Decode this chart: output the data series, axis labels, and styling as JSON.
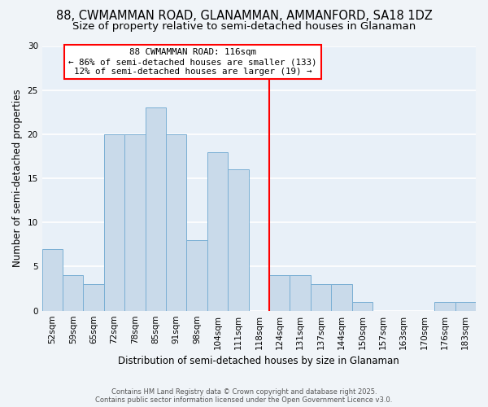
{
  "title": "88, CWMAMMAN ROAD, GLANAMMAN, AMMANFORD, SA18 1DZ",
  "subtitle": "Size of property relative to semi-detached houses in Glanaman",
  "xlabel": "Distribution of semi-detached houses by size in Glanaman",
  "ylabel": "Number of semi-detached properties",
  "categories": [
    "52sqm",
    "59sqm",
    "65sqm",
    "72sqm",
    "78sqm",
    "85sqm",
    "91sqm",
    "98sqm",
    "104sqm",
    "111sqm",
    "118sqm",
    "124sqm",
    "131sqm",
    "137sqm",
    "144sqm",
    "150sqm",
    "157sqm",
    "163sqm",
    "170sqm",
    "176sqm",
    "183sqm"
  ],
  "values": [
    7,
    4,
    3,
    20,
    20,
    23,
    20,
    8,
    18,
    16,
    0,
    4,
    4,
    3,
    3,
    1,
    0,
    0,
    0,
    1,
    1
  ],
  "bar_color": "#c9daea",
  "bar_edge_color": "#7aafd4",
  "vline_x_index": 10,
  "vline_color": "red",
  "annotation_text": "88 CWMAMMAN ROAD: 116sqm\n← 86% of semi-detached houses are smaller (133)\n12% of semi-detached houses are larger (19) →",
  "annotation_box_facecolor": "white",
  "annotation_box_edgecolor": "red",
  "ylim": [
    0,
    30
  ],
  "yticks": [
    0,
    5,
    10,
    15,
    20,
    25,
    30
  ],
  "figure_background": "#f0f4f8",
  "plot_background": "#e8f0f8",
  "grid_color": "white",
  "title_fontsize": 10.5,
  "subtitle_fontsize": 9.5,
  "tick_fontsize": 7.5,
  "footer_text": "Contains HM Land Registry data © Crown copyright and database right 2025.\nContains public sector information licensed under the Open Government Licence v3.0."
}
